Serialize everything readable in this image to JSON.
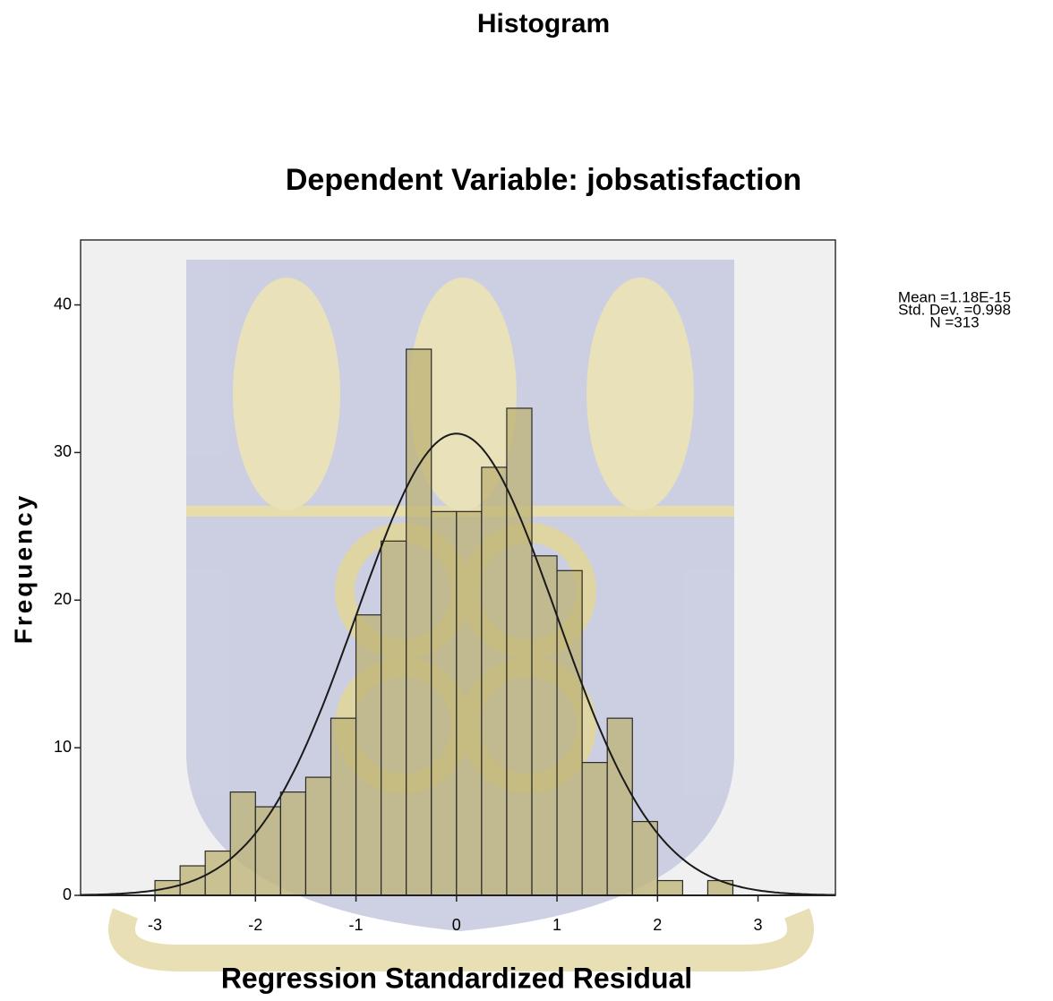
{
  "chart_data": {
    "type": "histogram",
    "title": "Histogram",
    "subtitle": "Dependent Variable: jobsatisfaction",
    "x_label": "Regression Standardized Residual",
    "y_label": "Frequency",
    "bins": [
      -3,
      -2.75,
      -2.5,
      -2.25,
      -2,
      -1.75,
      -1.5,
      -1.25,
      -1,
      -0.75,
      -0.5,
      -0.25,
      0,
      0.25,
      0.5,
      0.75,
      1,
      1.25,
      1.5,
      1.75,
      2,
      2.25,
      2.5,
      2.75
    ],
    "values": [
      1,
      2,
      3,
      7,
      6,
      7,
      8,
      12,
      19,
      24,
      37,
      26,
      26,
      29,
      33,
      23,
      22,
      9,
      12,
      5,
      1,
      0,
      1
    ],
    "color": "#bdb274",
    "xlim": [
      -3.74,
      3.77
    ],
    "ylim": [
      0,
      44.4
    ],
    "xticks": [
      -3,
      -2,
      -1,
      0,
      1,
      2,
      3
    ],
    "yticks": [
      0,
      10,
      20,
      30,
      40
    ],
    "stats": [
      {
        "value": 1.18e-15,
        "label": "Mean =1.18E-15"
      },
      {
        "value": 0.998,
        "label": "Std. Dev. =0.998"
      },
      {
        "value": 313,
        "label": "N =313"
      }
    ]
  }
}
